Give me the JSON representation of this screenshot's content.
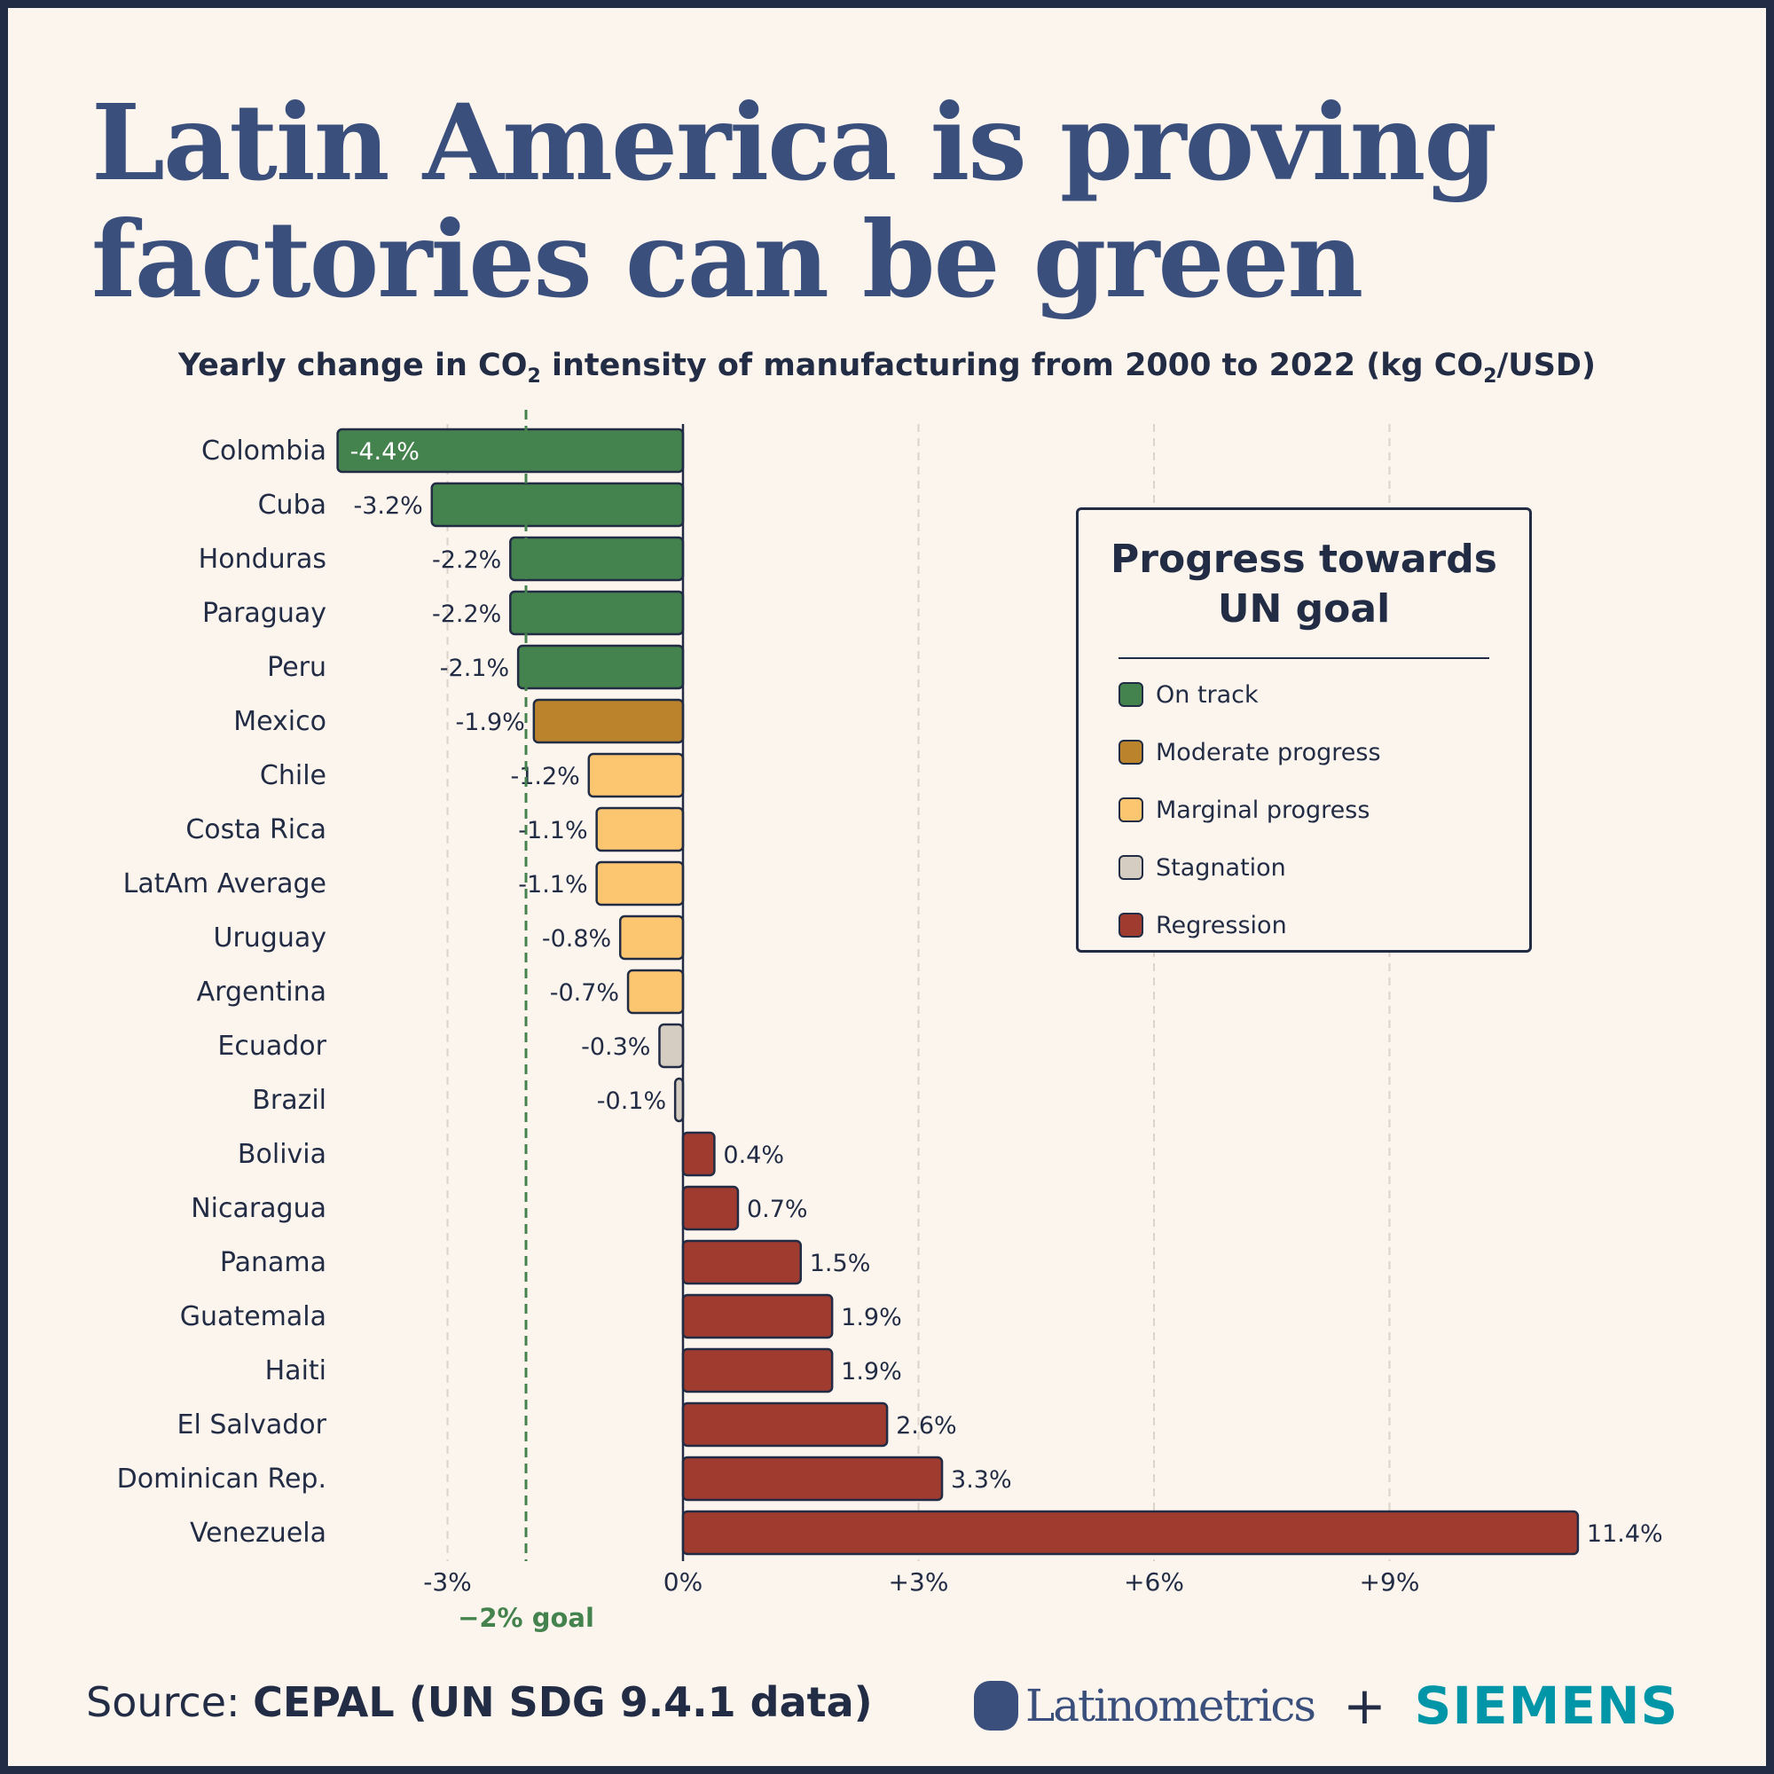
{
  "title": "Latin America is proving factories can be green",
  "subtitle_parts": {
    "a": "Yearly change in CO",
    "sub1": "2",
    "b": " intensity of manufacturing from 2000 to 2022 (kg CO",
    "sub2": "2",
    "c": "/USD)"
  },
  "legend": {
    "title": "Progress towards UN goal",
    "items": [
      {
        "label": "On track",
        "color": "#44824e"
      },
      {
        "label": "Moderate progress",
        "color": "#bb832c"
      },
      {
        "label": "Marginal progress",
        "color": "#fcc670"
      },
      {
        "label": "Stagnation",
        "color": "#d5cdc1"
      },
      {
        "label": "Regression",
        "color": "#a03b30"
      }
    ]
  },
  "source": {
    "prefix": "Source: ",
    "text": "CEPAL (UN SDG 9.4.1 data)"
  },
  "brands": {
    "latinometrics": "Latinometrics",
    "plus": "+",
    "siemens": "SIEMENS"
  },
  "chart_data": {
    "type": "bar",
    "orientation": "horizontal",
    "categories": [
      "Colombia",
      "Cuba",
      "Honduras",
      "Paraguay",
      "Peru",
      "Mexico",
      "Chile",
      "Costa Rica",
      "LatAm Average",
      "Uruguay",
      "Argentina",
      "Ecuador",
      "Brazil",
      "Bolivia",
      "Nicaragua",
      "Panama",
      "Guatemala",
      "Haiti",
      "El Salvador",
      "Dominican Rep.",
      "Venezuela"
    ],
    "values": [
      -4.4,
      -3.2,
      -2.2,
      -2.2,
      -2.1,
      -1.9,
      -1.2,
      -1.1,
      -1.1,
      -0.8,
      -0.7,
      -0.3,
      -0.1,
      0.4,
      0.7,
      1.5,
      1.9,
      1.9,
      2.6,
      3.3,
      11.4
    ],
    "data_labels": [
      "-4.4%",
      "-3.2%",
      "-2.2%",
      "-2.2%",
      "-2.1%",
      "-1.9%",
      "-1.2%",
      "-1.1%",
      "-1.1%",
      "-0.8%",
      "-0.7%",
      "-0.3%",
      "-0.1%",
      "0.4%",
      "0.7%",
      "1.5%",
      "1.9%",
      "1.9%",
      "2.6%",
      "3.3%",
      "11.4%"
    ],
    "status": [
      "On track",
      "On track",
      "On track",
      "On track",
      "On track",
      "Moderate progress",
      "Marginal progress",
      "Marginal progress",
      "Marginal progress",
      "Marginal progress",
      "Marginal progress",
      "Stagnation",
      "Stagnation",
      "Regression",
      "Regression",
      "Regression",
      "Regression",
      "Regression",
      "Regression",
      "Regression",
      "Regression"
    ],
    "x_ticks": [
      -3,
      0,
      3,
      6,
      9
    ],
    "x_tick_labels": [
      "-3%",
      "0%",
      "+3%",
      "+6%",
      "+9%"
    ],
    "xlim": [
      -4.4,
      11.4
    ],
    "grid": "vertical dashed",
    "reference_line": {
      "value": -2,
      "label": "−2% goal",
      "color": "#44824e"
    },
    "legend_position": "right"
  }
}
